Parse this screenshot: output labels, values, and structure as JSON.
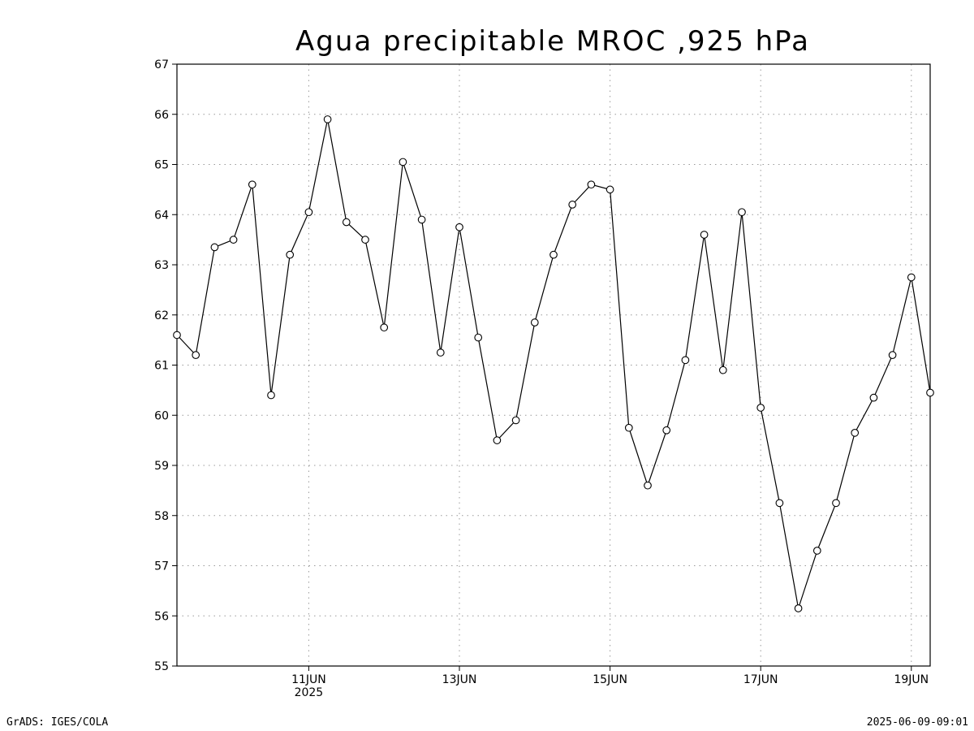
{
  "chart_data": {
    "type": "line",
    "title": "Agua precipitable MROC ,925 hPa",
    "ylim": [
      55,
      67
    ],
    "y_ticks": [
      55,
      56,
      57,
      58,
      59,
      60,
      61,
      62,
      63,
      64,
      65,
      66,
      67
    ],
    "x_range": [
      "2025-06-09T06:00",
      "2025-06-19T06:00"
    ],
    "x_ticks": [
      {
        "date": "2025-06-11T00:00",
        "label": "11JUN",
        "sublabel": "2025"
      },
      {
        "date": "2025-06-13T00:00",
        "label": "13JUN",
        "sublabel": ""
      },
      {
        "date": "2025-06-15T00:00",
        "label": "15JUN",
        "sublabel": ""
      },
      {
        "date": "2025-06-17T00:00",
        "label": "17JUN",
        "sublabel": ""
      },
      {
        "date": "2025-06-19T00:00",
        "label": "19JUN",
        "sublabel": ""
      }
    ],
    "grid": true,
    "marker": "open-circle",
    "series": [
      {
        "x": [
          "2025-06-09T06:00",
          "2025-06-09T12:00",
          "2025-06-09T18:00",
          "2025-06-10T00:00",
          "2025-06-10T06:00",
          "2025-06-10T12:00",
          "2025-06-10T18:00",
          "2025-06-11T00:00",
          "2025-06-11T06:00",
          "2025-06-11T12:00",
          "2025-06-11T18:00",
          "2025-06-12T00:00",
          "2025-06-12T06:00",
          "2025-06-12T12:00",
          "2025-06-12T18:00",
          "2025-06-13T00:00",
          "2025-06-13T06:00",
          "2025-06-13T12:00",
          "2025-06-13T18:00",
          "2025-06-14T00:00",
          "2025-06-14T06:00",
          "2025-06-14T12:00",
          "2025-06-14T18:00",
          "2025-06-15T00:00",
          "2025-06-15T06:00",
          "2025-06-15T12:00",
          "2025-06-15T18:00",
          "2025-06-16T00:00",
          "2025-06-16T06:00",
          "2025-06-16T12:00",
          "2025-06-16T18:00",
          "2025-06-17T00:00",
          "2025-06-17T06:00",
          "2025-06-17T12:00",
          "2025-06-17T18:00",
          "2025-06-18T00:00",
          "2025-06-18T06:00",
          "2025-06-18T12:00",
          "2025-06-18T18:00",
          "2025-06-19T00:00",
          "2025-06-19T06:00"
        ],
        "y": [
          61.6,
          61.2,
          63.35,
          63.5,
          64.6,
          60.4,
          63.2,
          64.05,
          65.9,
          63.85,
          63.5,
          61.75,
          65.05,
          63.9,
          61.25,
          63.75,
          61.55,
          59.5,
          59.9,
          61.85,
          63.2,
          64.2,
          64.6,
          64.5,
          59.75,
          58.6,
          59.7,
          61.1,
          63.6,
          60.9,
          64.05,
          60.15,
          58.25,
          56.15,
          57.3,
          58.25,
          59.65,
          60.35,
          61.2,
          62.75,
          60.45
        ]
      }
    ]
  },
  "footer": {
    "left": "GrADS: IGES/COLA",
    "right": "2025-06-09-09:01"
  }
}
